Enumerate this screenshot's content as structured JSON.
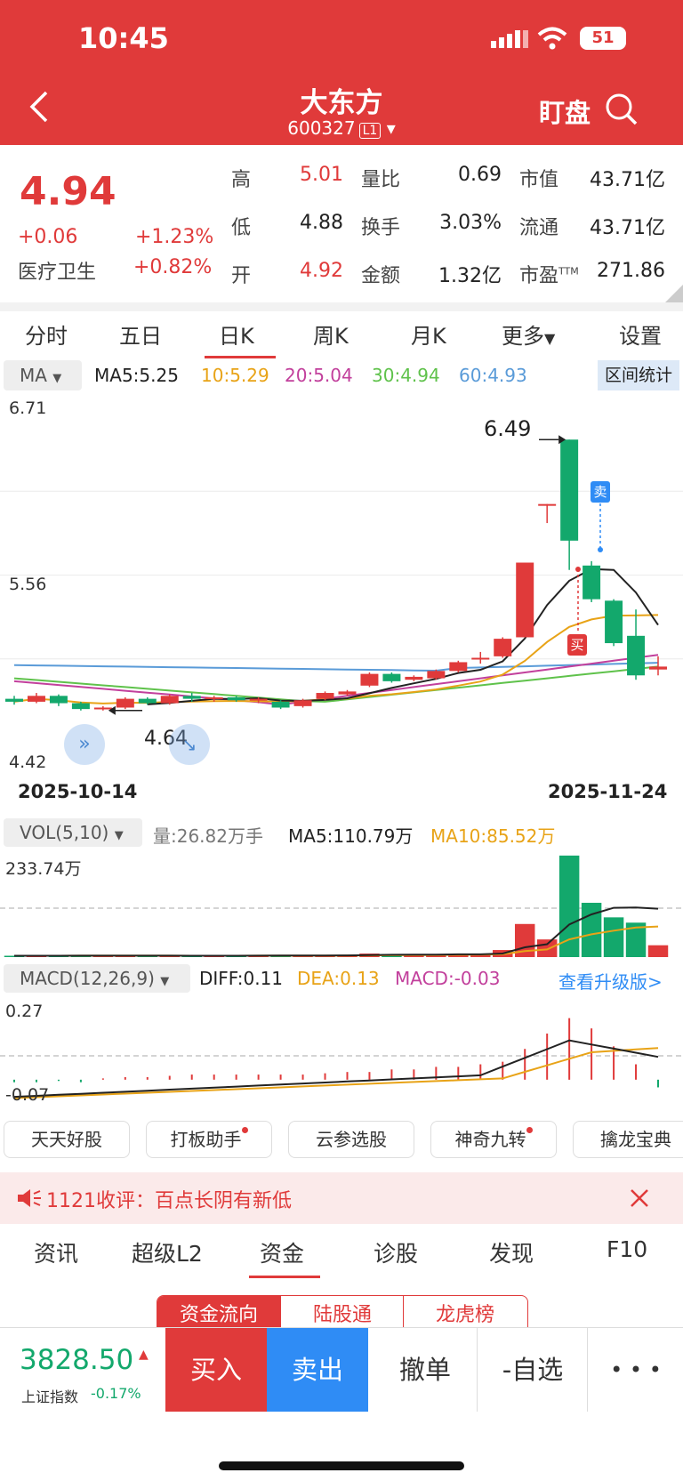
{
  "status": {
    "time": "10:45",
    "battery": "51"
  },
  "header": {
    "title": "大东方",
    "code": "600327",
    "level": "L1",
    "watch": "盯盘"
  },
  "quote": {
    "price": "4.94",
    "change": "+0.06",
    "change_pct": "+1.23%",
    "sector": "医疗卫生",
    "sector_pct": "+0.82%",
    "high_label": "高",
    "high": "5.01",
    "low_label": "低",
    "low": "4.88",
    "open_label": "开",
    "open": "4.92",
    "vol_ratio_label": "量比",
    "vol_ratio": "0.69",
    "turnover_label": "换手",
    "turnover": "3.03%",
    "amount_label": "金额",
    "amount": "1.32亿",
    "mcap_label": "市值",
    "mcap": "43.71亿",
    "float_label": "流通",
    "float": "43.71亿",
    "pe_label": "市盈",
    "pe_sup": "TTM",
    "pe": "271.86"
  },
  "period_tabs": [
    "分时",
    "五日",
    "日K",
    "周K",
    "月K",
    "更多",
    "设置"
  ],
  "ma": {
    "selector": "MA",
    "ma5": "MA5:5.25",
    "ma10": "10:5.29",
    "ma20": "20:5.04",
    "ma30": "30:4.94",
    "ma60": "60:4.93",
    "interval": "区间统计"
  },
  "colors": {
    "up": "#e03a3a",
    "down": "#13a86c",
    "ma5": "#222222",
    "ma10": "#e8a317",
    "ma20": "#c2409c",
    "ma30": "#5fc24b",
    "ma60": "#5a9bd8",
    "blue_btn": "#2f8cf5"
  },
  "kline_axis": {
    "top": "6.71",
    "mid": "5.56",
    "bottom": "4.42",
    "start_date": "2025-10-14",
    "end_date": "2025-11-24",
    "high_mark": "6.49",
    "low_mark": "4.64",
    "sell_tag": "卖",
    "buy_tag": "买"
  },
  "chart_data": {
    "type": "candlestick",
    "dates": [
      "2025-10-14",
      "2025-11-24"
    ],
    "ylim": [
      4.42,
      6.71
    ],
    "candles": [
      {
        "o": 4.72,
        "c": 4.7,
        "h": 4.74,
        "l": 4.68
      },
      {
        "o": 4.7,
        "c": 4.74,
        "h": 4.76,
        "l": 4.69
      },
      {
        "o": 4.74,
        "c": 4.69,
        "h": 4.75,
        "l": 4.67
      },
      {
        "o": 4.69,
        "c": 4.65,
        "h": 4.7,
        "l": 4.64
      },
      {
        "o": 4.65,
        "c": 4.66,
        "h": 4.67,
        "l": 4.64
      },
      {
        "o": 4.66,
        "c": 4.72,
        "h": 4.73,
        "l": 4.65
      },
      {
        "o": 4.72,
        "c": 4.69,
        "h": 4.73,
        "l": 4.68
      },
      {
        "o": 4.69,
        "c": 4.74,
        "h": 4.75,
        "l": 4.68
      },
      {
        "o": 4.74,
        "c": 4.72,
        "h": 4.76,
        "l": 4.7
      },
      {
        "o": 4.72,
        "c": 4.73,
        "h": 4.74,
        "l": 4.7
      },
      {
        "o": 4.73,
        "c": 4.71,
        "h": 4.74,
        "l": 4.7
      },
      {
        "o": 4.71,
        "c": 4.72,
        "h": 4.73,
        "l": 4.69
      },
      {
        "o": 4.7,
        "c": 4.66,
        "h": 4.71,
        "l": 4.65
      },
      {
        "o": 4.67,
        "c": 4.71,
        "h": 4.72,
        "l": 4.66
      },
      {
        "o": 4.72,
        "c": 4.76,
        "h": 4.77,
        "l": 4.71
      },
      {
        "o": 4.75,
        "c": 4.77,
        "h": 4.78,
        "l": 4.74
      },
      {
        "o": 4.81,
        "c": 4.89,
        "h": 4.9,
        "l": 4.8
      },
      {
        "o": 4.89,
        "c": 4.84,
        "h": 4.9,
        "l": 4.83
      },
      {
        "o": 4.85,
        "c": 4.87,
        "h": 4.88,
        "l": 4.84
      },
      {
        "o": 4.86,
        "c": 4.91,
        "h": 4.92,
        "l": 4.85
      },
      {
        "o": 4.91,
        "c": 4.97,
        "h": 4.98,
        "l": 4.9
      },
      {
        "o": 5.0,
        "c": 5.0,
        "h": 5.04,
        "l": 4.96
      },
      {
        "o": 5.01,
        "c": 5.13,
        "h": 5.14,
        "l": 5.0
      },
      {
        "o": 5.14,
        "c": 5.65,
        "h": 5.65,
        "l": 5.14
      },
      {
        "o": 6.05,
        "c": 6.05,
        "h": 6.05,
        "l": 5.92
      },
      {
        "o": 6.49,
        "c": 5.8,
        "h": 6.49,
        "l": 5.6
      },
      {
        "o": 5.63,
        "c": 5.4,
        "h": 5.66,
        "l": 5.38
      },
      {
        "o": 5.39,
        "c": 5.1,
        "h": 5.4,
        "l": 5.08
      },
      {
        "o": 5.15,
        "c": 4.88,
        "h": 5.33,
        "l": 4.85
      },
      {
        "o": 4.92,
        "c": 4.94,
        "h": 5.01,
        "l": 4.88
      }
    ]
  },
  "volume": {
    "selector": "VOL(5,10)",
    "amount": "量:26.82万手",
    "ma5": "MA5:110.79万",
    "ma10": "MA10:85.52万",
    "max": "233.74万"
  },
  "volume_data": [
    3,
    3,
    3,
    4,
    3,
    3,
    3,
    3,
    3,
    3,
    3,
    4,
    4,
    3,
    4,
    4,
    8,
    7,
    4,
    5,
    7,
    8,
    16,
    75,
    40,
    230,
    123,
    90,
    78,
    26.82
  ],
  "macd": {
    "selector": "MACD(12,26,9)",
    "diff": "DIFF:0.11",
    "dea": "DEA:0.13",
    "macd": "MACD:-0.03",
    "upgrade": "查看升级版>",
    "top": "0.27",
    "bottom": "-0.07"
  },
  "macd_data": [
    -0.01,
    -0.01,
    -0.005,
    -0.01,
    0.005,
    0.01,
    0.01,
    0.015,
    0.02,
    0.02,
    0.02,
    0.02,
    0.02,
    0.02,
    0.025,
    0.03,
    0.03,
    0.04,
    0.04,
    0.05,
    0.05,
    0.06,
    0.07,
    0.12,
    0.18,
    0.24,
    0.2,
    0.13,
    0.06,
    -0.03
  ],
  "tools": [
    "天天好股",
    "打板助手",
    "云参选股",
    "神奇九转",
    "擒龙宝典"
  ],
  "notice": {
    "text": "1121收评：百点长阴有新低"
  },
  "bottom_tabs": [
    "资讯",
    "超级L2",
    "资金",
    "诊股",
    "发现",
    "F10"
  ],
  "sub_tabs": [
    "资金流向",
    "陆股通",
    "龙虎榜"
  ],
  "index": {
    "value": "3828.50",
    "name": "上证指数",
    "pct": "-0.17%"
  },
  "actions": {
    "buy": "买入",
    "sell": "卖出",
    "cancel": "撤单",
    "watch": "-自选",
    "more": "• • •"
  }
}
